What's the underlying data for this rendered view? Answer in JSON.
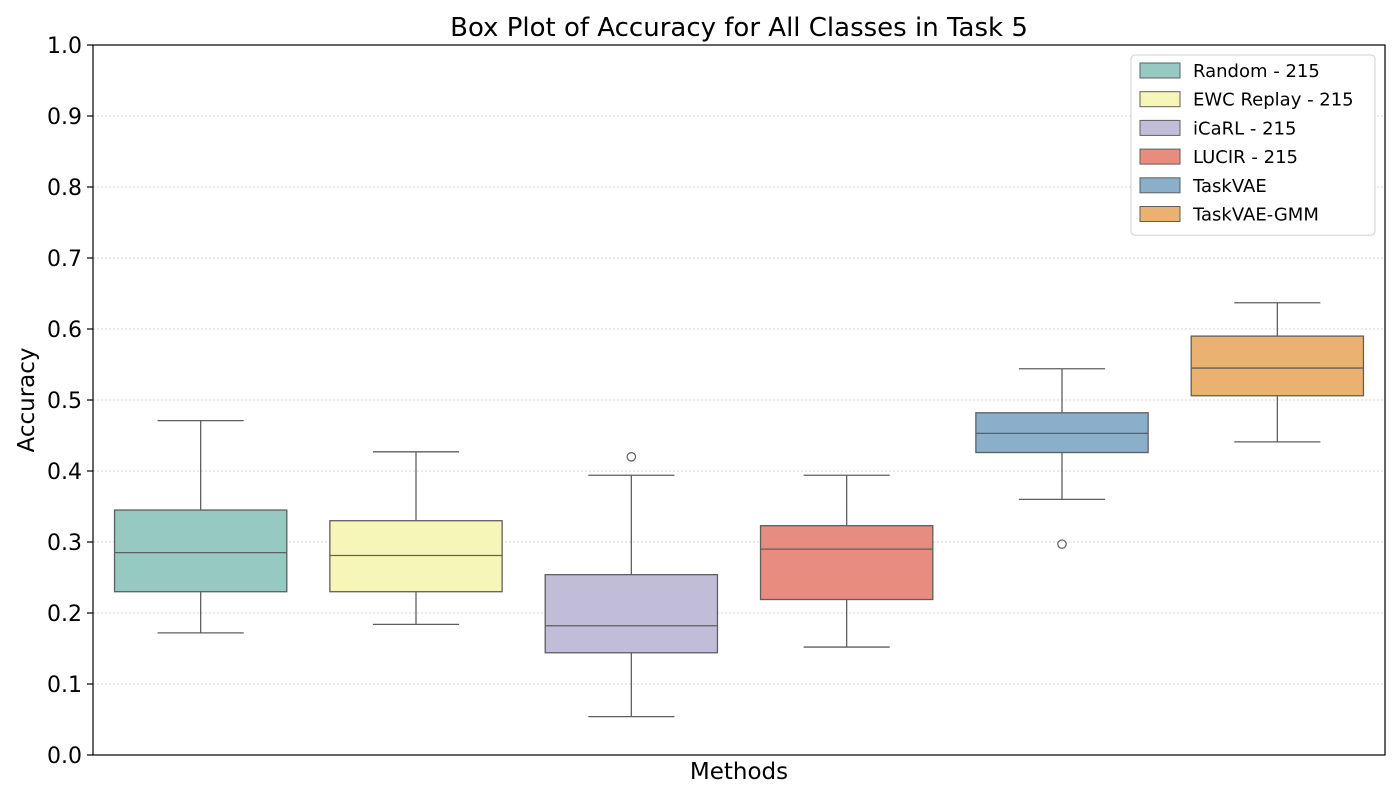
{
  "chart_data": {
    "type": "box",
    "title": "Box Plot of Accuracy for All Classes in Task 5",
    "xlabel": "Methods",
    "ylabel": "Accuracy",
    "ylim": [
      0.0,
      1.0
    ],
    "yticks": [
      0.0,
      0.1,
      0.2,
      0.3,
      0.4,
      0.5,
      0.6,
      0.7,
      0.8,
      0.9,
      1.0
    ],
    "ytick_labels": [
      "0.0",
      "0.1",
      "0.2",
      "0.3",
      "0.4",
      "0.5",
      "0.6",
      "0.7",
      "0.8",
      "0.9",
      "1.0"
    ],
    "grid": "y-dotted",
    "legend_position": "top-right",
    "series": [
      {
        "name": "Random - 215",
        "color": "#96c9c1",
        "whisker_low": 0.172,
        "q1": 0.23,
        "median": 0.285,
        "q3": 0.345,
        "whisker_high": 0.471,
        "outliers": []
      },
      {
        "name": "EWC Replay - 215",
        "color": "#f7f6b9",
        "whisker_low": 0.184,
        "q1": 0.23,
        "median": 0.281,
        "q3": 0.33,
        "whisker_high": 0.427,
        "outliers": []
      },
      {
        "name": "iCaRL - 215",
        "color": "#c1bdd8",
        "whisker_low": 0.054,
        "q1": 0.144,
        "median": 0.182,
        "q3": 0.254,
        "whisker_high": 0.394,
        "outliers": [
          0.42
        ]
      },
      {
        "name": "LUCIR - 215",
        "color": "#e98c80",
        "whisker_low": 0.152,
        "q1": 0.219,
        "median": 0.29,
        "q3": 0.323,
        "whisker_high": 0.394,
        "outliers": []
      },
      {
        "name": "TaskVAE",
        "color": "#8aafcb",
        "whisker_low": 0.36,
        "q1": 0.426,
        "median": 0.453,
        "q3": 0.482,
        "whisker_high": 0.544,
        "outliers": [
          0.297
        ]
      },
      {
        "name": "TaskVAE-GMM",
        "color": "#ebb170",
        "whisker_low": 0.441,
        "q1": 0.506,
        "median": 0.545,
        "q3": 0.59,
        "whisker_high": 0.637,
        "outliers": []
      }
    ]
  }
}
